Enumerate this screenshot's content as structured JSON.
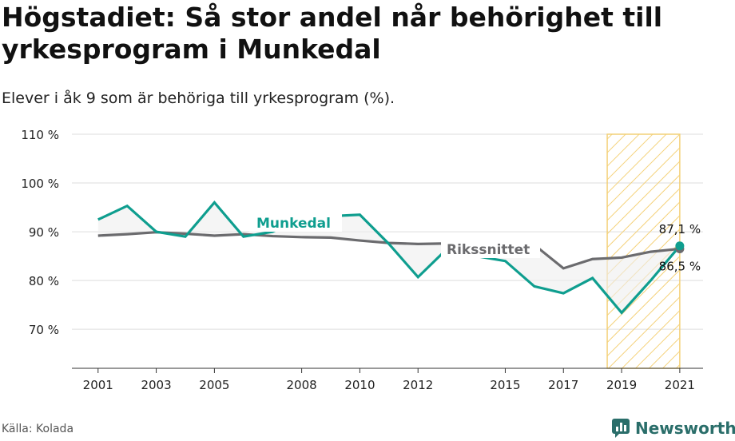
{
  "title": "Högstadiet: Så stor andel når behörighet till yrkesprogram i Munkedal",
  "subtitle": "Elever i åk 9 som är behöriga till yrkesprogram (%).",
  "source": "Källa: Kolada",
  "brand": "Newsworthy",
  "colors": {
    "munkedal": "#0f9e8f",
    "riket": "#6b6b6e",
    "highlight": "#f3cd6b"
  },
  "chart_data": {
    "type": "line",
    "x": [
      2001,
      2002,
      2003,
      2004,
      2005,
      2006,
      2007,
      2008,
      2009,
      2010,
      2011,
      2012,
      2013,
      2014,
      2015,
      2016,
      2017,
      2018,
      2019,
      2020,
      2021
    ],
    "series": [
      {
        "name": "Munkedal",
        "values": [
          92.5,
          95.3,
          90.0,
          89.0,
          96.0,
          89.0,
          90.0,
          92.8,
          93.2,
          93.5,
          87.5,
          80.7,
          86.5,
          85.0,
          84.0,
          78.8,
          77.4,
          80.5,
          73.4,
          80.0,
          87.1
        ]
      },
      {
        "name": "Rikssnittet",
        "values": [
          89.2,
          89.5,
          89.9,
          89.6,
          89.2,
          89.5,
          89.1,
          88.9,
          88.8,
          88.2,
          87.7,
          87.5,
          87.6,
          87.4,
          87.3,
          87.3,
          82.5,
          84.4,
          84.7,
          85.9,
          86.5
        ]
      }
    ],
    "xticks": [
      "2001",
      "2003",
      "2005",
      "2008",
      "2010",
      "2012",
      "2015",
      "2017",
      "2019",
      "2021"
    ],
    "yticks": [
      "110 %",
      "100 %",
      "90 %",
      "80 %",
      "70 %"
    ],
    "ylim": [
      62,
      110
    ],
    "xlim": [
      2000.1,
      2021.8
    ],
    "highlight_range": [
      2019,
      2021
    ],
    "end_labels": {
      "munkedal": "87,1 %",
      "riket": "86,5 %"
    },
    "grid": true
  }
}
